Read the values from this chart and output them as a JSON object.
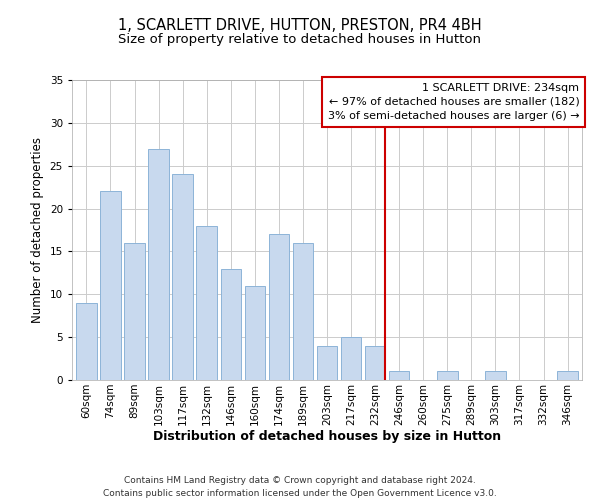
{
  "title": "1, SCARLETT DRIVE, HUTTON, PRESTON, PR4 4BH",
  "subtitle": "Size of property relative to detached houses in Hutton",
  "xlabel": "Distribution of detached houses by size in Hutton",
  "ylabel": "Number of detached properties",
  "categories": [
    "60sqm",
    "74sqm",
    "89sqm",
    "103sqm",
    "117sqm",
    "132sqm",
    "146sqm",
    "160sqm",
    "174sqm",
    "189sqm",
    "203sqm",
    "217sqm",
    "232sqm",
    "246sqm",
    "260sqm",
    "275sqm",
    "289sqm",
    "303sqm",
    "317sqm",
    "332sqm",
    "346sqm"
  ],
  "values": [
    9,
    22,
    16,
    27,
    24,
    18,
    13,
    11,
    17,
    16,
    4,
    5,
    4,
    1,
    0,
    1,
    0,
    1,
    0,
    0,
    1
  ],
  "bar_color": "#c8d9ee",
  "bar_edge_color": "#8db4d8",
  "red_line_index": 12,
  "ylim": [
    0,
    35
  ],
  "yticks": [
    0,
    5,
    10,
    15,
    20,
    25,
    30,
    35
  ],
  "annotation_title": "1 SCARLETT DRIVE: 234sqm",
  "annotation_line1": "← 97% of detached houses are smaller (182)",
  "annotation_line2": "3% of semi-detached houses are larger (6) →",
  "annotation_box_color": "#ffffff",
  "annotation_box_edge": "#cc0000",
  "red_line_color": "#cc0000",
  "footer_line1": "Contains HM Land Registry data © Crown copyright and database right 2024.",
  "footer_line2": "Contains public sector information licensed under the Open Government Licence v3.0.",
  "background_color": "#ffffff",
  "grid_color": "#cccccc",
  "title_fontsize": 10.5,
  "subtitle_fontsize": 9.5,
  "ylabel_fontsize": 8.5,
  "xlabel_fontsize": 9,
  "tick_fontsize": 7.5,
  "annotation_fontsize": 8,
  "footer_fontsize": 6.5
}
